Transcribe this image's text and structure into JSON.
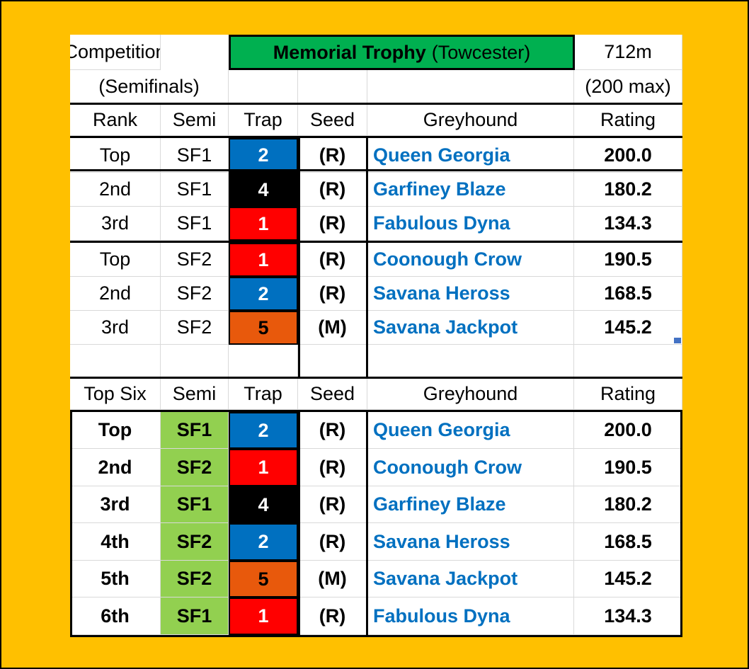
{
  "header": {
    "competition_label": "Competition",
    "trophy_name": "Memorial Trophy",
    "venue": "(Towcester)",
    "distance": "712m",
    "stage": "(Semifinals)",
    "rating_scale": "(200 max)"
  },
  "semis_table": {
    "headers": [
      "Rank",
      "Semi",
      "Trap",
      "Seed",
      "Greyhound",
      "Rating"
    ],
    "rows": [
      {
        "rank": "Top",
        "semi": "SF1",
        "trap": "2",
        "seed": "(R)",
        "greyhound": "Queen Georgia",
        "rating": "200.0"
      },
      {
        "rank": "2nd",
        "semi": "SF1",
        "trap": "4",
        "seed": "(R)",
        "greyhound": "Garfiney Blaze",
        "rating": "180.2"
      },
      {
        "rank": "3rd",
        "semi": "SF1",
        "trap": "1",
        "seed": "(R)",
        "greyhound": "Fabulous Dyna",
        "rating": "134.3"
      },
      {
        "rank": "Top",
        "semi": "SF2",
        "trap": "1",
        "seed": "(R)",
        "greyhound": "Coonough Crow",
        "rating": "190.5"
      },
      {
        "rank": "2nd",
        "semi": "SF2",
        "trap": "2",
        "seed": "(R)",
        "greyhound": "Savana Heross",
        "rating": "168.5"
      },
      {
        "rank": "3rd",
        "semi": "SF2",
        "trap": "5",
        "seed": "(M)",
        "greyhound": "Savana Jackpot",
        "rating": "145.2"
      }
    ]
  },
  "top_six_table": {
    "headers": [
      "Top Six",
      "Semi",
      "Trap",
      "Seed",
      "Greyhound",
      "Rating"
    ],
    "rows": [
      {
        "rank": "Top",
        "semi": "SF1",
        "trap": "2",
        "seed": "(R)",
        "greyhound": "Queen Georgia",
        "rating": "200.0"
      },
      {
        "rank": "2nd",
        "semi": "SF2",
        "trap": "1",
        "seed": "(R)",
        "greyhound": "Coonough Crow",
        "rating": "190.5"
      },
      {
        "rank": "3rd",
        "semi": "SF1",
        "trap": "4",
        "seed": "(R)",
        "greyhound": "Garfiney Blaze",
        "rating": "180.2"
      },
      {
        "rank": "4th",
        "semi": "SF2",
        "trap": "2",
        "seed": "(R)",
        "greyhound": "Savana Heross",
        "rating": "168.5"
      },
      {
        "rank": "5th",
        "semi": "SF2",
        "trap": "5",
        "seed": "(M)",
        "greyhound": "Savana Jackpot",
        "rating": "145.2"
      },
      {
        "rank": "6th",
        "semi": "SF1",
        "trap": "1",
        "seed": "(R)",
        "greyhound": "Fabulous Dyna",
        "rating": "134.3"
      }
    ]
  },
  "colors": {
    "background": "#FFC000",
    "title_fill": "#00B050",
    "semi_fill": "#92D050",
    "greyhound_text": "#0070C0",
    "trap_1": "#FF0000",
    "trap_2": "#0070C0",
    "trap_4": "#000000",
    "trap_5": "#E8590C"
  }
}
